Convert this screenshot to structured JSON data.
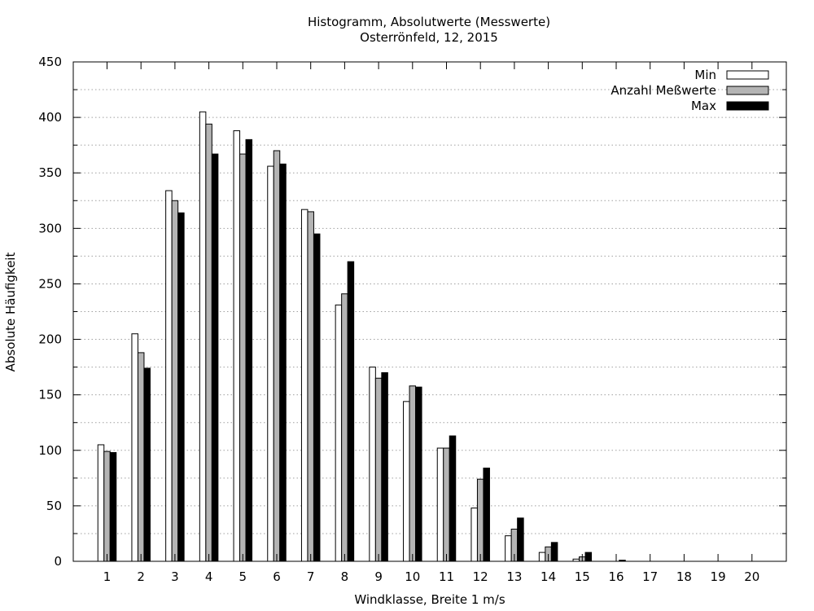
{
  "chart_data": {
    "type": "bar",
    "title": "Histogramm, Absolutwerte (Messwerte)",
    "subtitle": "Osterrönfeld, 12, 2015",
    "xlabel": "Windklasse, Breite 1 m/s",
    "ylabel": "Absolute Häufigkeit",
    "ylim": [
      0,
      450
    ],
    "yticks": [
      0,
      50,
      100,
      150,
      200,
      250,
      300,
      350,
      400,
      450
    ],
    "categories": [
      "1",
      "2",
      "3",
      "4",
      "5",
      "6",
      "7",
      "8",
      "9",
      "10",
      "11",
      "12",
      "13",
      "14",
      "15",
      "16",
      "17",
      "18",
      "19",
      "20"
    ],
    "grid": true,
    "legend_position": "top-right",
    "series": [
      {
        "name": "Min",
        "color": "#ffffff",
        "values": [
          105,
          205,
          334,
          405,
          388,
          356,
          317,
          231,
          175,
          144,
          102,
          48,
          23,
          8,
          2,
          0,
          0,
          0,
          0,
          0
        ]
      },
      {
        "name": "Anzahl Meßwerte",
        "color": "#b4b4b4",
        "values": [
          99,
          188,
          325,
          394,
          367,
          370,
          315,
          241,
          165,
          158,
          102,
          74,
          29,
          13,
          4,
          0,
          0,
          0,
          0,
          0
        ]
      },
      {
        "name": "Max",
        "color": "#000000",
        "values": [
          98,
          174,
          314,
          367,
          380,
          358,
          295,
          270,
          170,
          157,
          113,
          84,
          39,
          17,
          8,
          1,
          0,
          0,
          0,
          0
        ]
      }
    ]
  }
}
